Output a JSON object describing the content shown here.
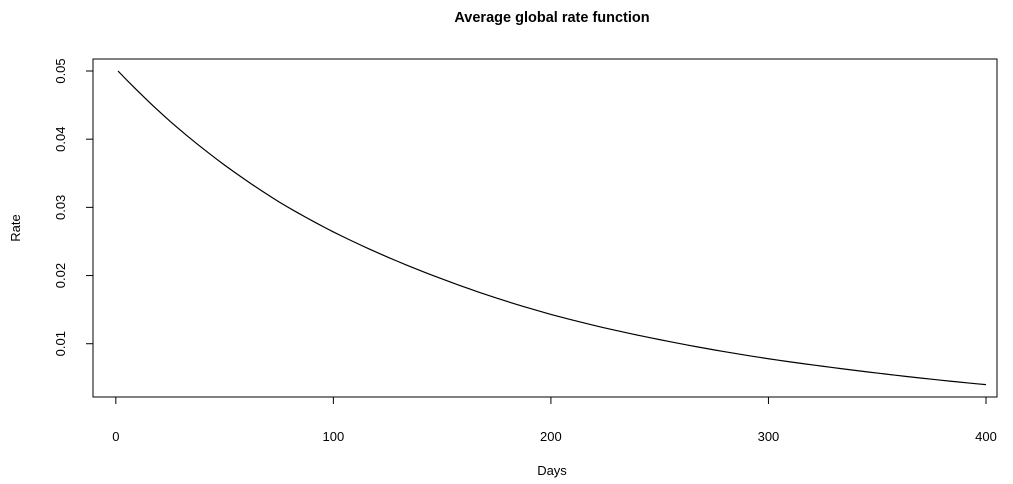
{
  "chart_data": {
    "type": "line",
    "title": "Average global rate function",
    "xlabel": "Days",
    "ylabel": "Rate",
    "xlim": [
      1,
      400
    ],
    "ylim": [
      0.0038,
      0.05
    ],
    "x_ticks": [
      0,
      100,
      200,
      300,
      400
    ],
    "x_tick_labels": [
      "0",
      "100",
      "200",
      "300",
      "400"
    ],
    "y_ticks": [
      0.01,
      0.02,
      0.03,
      0.04,
      0.05
    ],
    "y_tick_labels": [
      "0.01",
      "0.02",
      "0.03",
      "0.04",
      "0.05"
    ],
    "grid": false,
    "line_color": "#000000",
    "series": [
      {
        "x": [
          1,
          25,
          50,
          75,
          100,
          125,
          150,
          175,
          200,
          225,
          250,
          275,
          300,
          325,
          350,
          375,
          400
        ],
        "y": [
          0.05,
          0.0426,
          0.0362,
          0.0308,
          0.0264,
          0.0227,
          0.0195,
          0.0167,
          0.0143,
          0.0123,
          0.0106,
          0.0091,
          0.0078,
          0.0067,
          0.0057,
          0.0048,
          0.004
        ]
      }
    ]
  }
}
